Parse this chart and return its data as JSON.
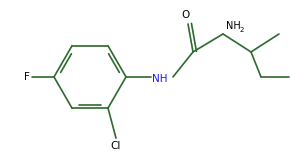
{
  "background": "#ffffff",
  "line_color": "#2d6a2d",
  "lw": 1.2,
  "label_F": "F",
  "label_Cl": "Cl",
  "label_NH": "NH",
  "label_O": "O",
  "label_NH2": "NH",
  "label_NH2_sub": "2",
  "color_black": "#000000",
  "color_blue": "#1a1aff",
  "color_green": "#2d6a2d",
  "fontsize": 7.5
}
